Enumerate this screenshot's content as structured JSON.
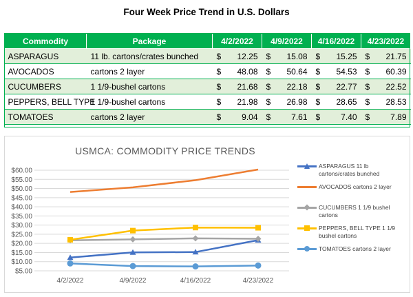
{
  "page": {
    "title": "Four Week Price Trend in U.S. Dollars"
  },
  "table": {
    "headers": [
      "Commodity",
      "Package",
      "4/2/2022",
      "4/9/2022",
      "4/16/2022",
      "4/23/2022"
    ],
    "currency_symbol": "$",
    "rows": [
      {
        "commodity": "ASPARAGUS",
        "package": "11 lb. cartons/crates bunched",
        "prices": [
          "12.25",
          "15.08",
          "15.25",
          "21.75"
        ]
      },
      {
        "commodity": "AVOCADOS",
        "package": "cartons 2 layer",
        "prices": [
          "48.08",
          "50.64",
          "54.53",
          "60.39"
        ]
      },
      {
        "commodity": "CUCUMBERS",
        "package": "1 1/9-bushel cartons",
        "prices": [
          "21.68",
          "22.18",
          "22.77",
          "22.52"
        ]
      },
      {
        "commodity": "PEPPERS, BELL TYPE",
        "package": "1 1/9-bushel cartons",
        "prices": [
          "21.98",
          "26.98",
          "28.65",
          "28.53"
        ]
      },
      {
        "commodity": "TOMATOES",
        "package": "cartons 2 layer",
        "prices": [
          "9.04",
          "7.61",
          "7.40",
          "7.89"
        ]
      }
    ],
    "colors": {
      "header_bg": "#00b050",
      "stripe_bg": "#e2efda",
      "border": "#00b050"
    }
  },
  "chart_data": {
    "type": "line",
    "title": "USMCA: COMMODITY PRICE TRENDS",
    "categories": [
      "4/2/2022",
      "4/9/2022",
      "4/16/2022",
      "4/23/2022"
    ],
    "ylim": [
      5,
      60
    ],
    "yticks": [
      5,
      10,
      15,
      20,
      25,
      30,
      35,
      40,
      45,
      50,
      55,
      60
    ],
    "ytick_labels": [
      "$5.00",
      "$10.00",
      "$15.00",
      "$20.00",
      "$25.00",
      "$30.00",
      "$35.00",
      "$40.00",
      "$45.00",
      "$50.00",
      "$55.00",
      "$60.00"
    ],
    "grid": true,
    "legend_position": "right",
    "series": [
      {
        "name": "ASPARAGUS 11 lb cartons/crates bunched",
        "values": [
          12.25,
          15.08,
          15.25,
          21.75
        ],
        "color": "#4472c4",
        "marker": "triangle"
      },
      {
        "name": "AVOCADOS cartons 2 layer",
        "values": [
          48.08,
          50.64,
          54.53,
          60.39
        ],
        "color": "#ed7d31",
        "marker": "none"
      },
      {
        "name": "CUCUMBERS 1 1/9 bushel cartons",
        "values": [
          21.68,
          22.18,
          22.77,
          22.52
        ],
        "color": "#a5a5a5",
        "marker": "diamond"
      },
      {
        "name": "PEPPERS, BELL TYPE 1 1/9 bushel cartons",
        "values": [
          21.98,
          26.98,
          28.65,
          28.53
        ],
        "color": "#ffc000",
        "marker": "square"
      },
      {
        "name": "TOMATOES cartons 2 layer",
        "values": [
          9.04,
          7.61,
          7.4,
          7.89
        ],
        "color": "#5b9bd5",
        "marker": "circle"
      }
    ]
  }
}
